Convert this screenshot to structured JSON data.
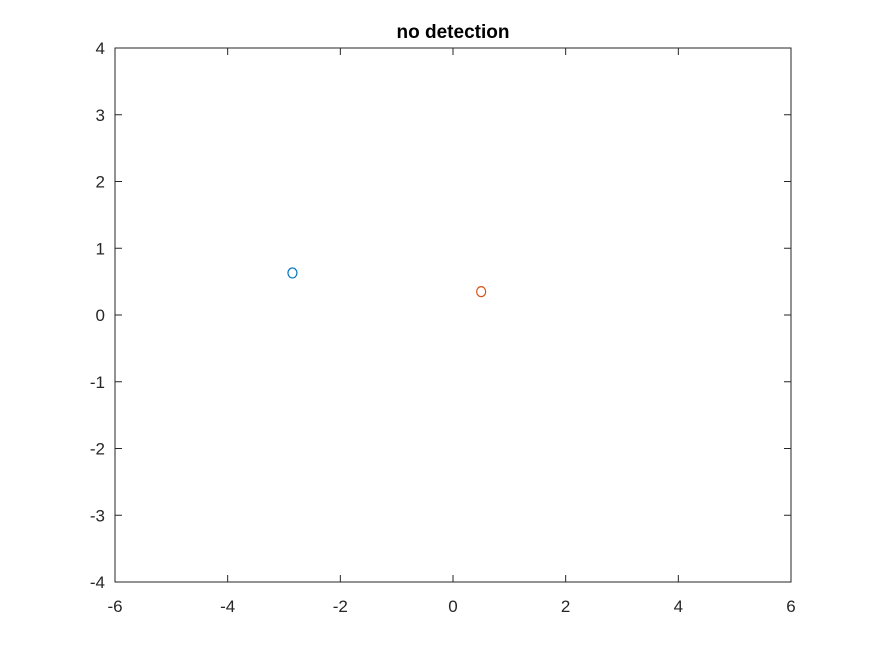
{
  "chart_data": {
    "type": "scatter",
    "title": "no detection",
    "xlabel": "",
    "ylabel": "",
    "xlim": [
      -6,
      6
    ],
    "ylim": [
      -4,
      4
    ],
    "xticks": [
      -6,
      -4,
      -2,
      0,
      2,
      4,
      6
    ],
    "yticks": [
      -4,
      -3,
      -2,
      -1,
      0,
      1,
      2,
      3,
      4
    ],
    "grid": false,
    "marker": "o",
    "series": [
      {
        "x": [
          -2.85
        ],
        "y": [
          0.63
        ],
        "color": "#0072BD"
      },
      {
        "x": [
          0.5
        ],
        "y": [
          0.35
        ],
        "color": "#D95319"
      }
    ]
  }
}
